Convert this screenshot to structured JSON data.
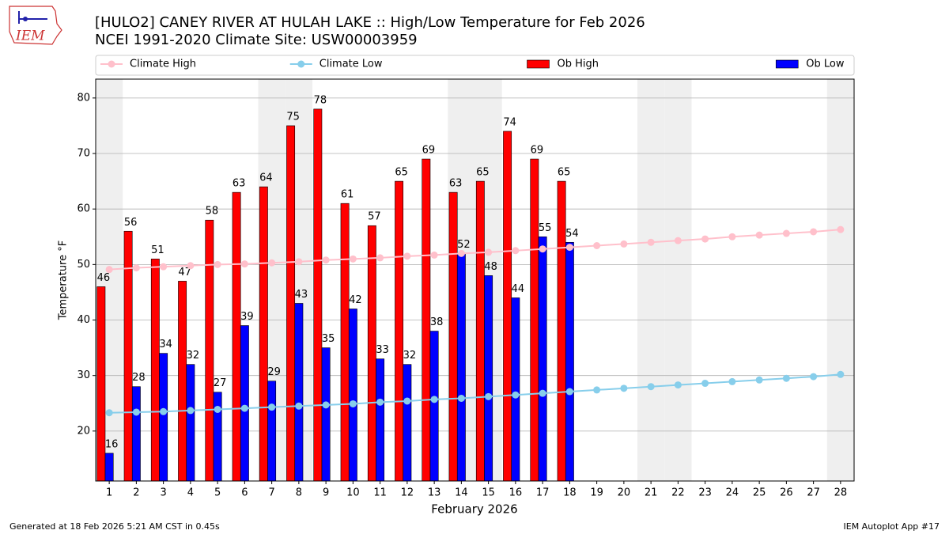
{
  "logo_text": "IEM",
  "footer_left": "Generated at 18 Feb 2026 5:21 AM CST in 0.45s",
  "footer_right": "IEM Autoplot App #17",
  "chart_data": {
    "type": "bar",
    "title": "[HULO2] CANEY RIVER  AT HULAH LAKE :: High/Low Temperature for Feb 2026",
    "subtitle": "NCEI 1991-2020 Climate Site: USW00003959",
    "x_label": "February 2026",
    "y_label": "Temperature °F",
    "x": [
      1,
      2,
      3,
      4,
      5,
      6,
      7,
      8,
      9,
      10,
      11,
      12,
      13,
      14,
      15,
      16,
      17,
      18,
      19,
      20,
      21,
      22,
      23,
      24,
      25,
      26,
      27,
      28
    ],
    "xlim": [
      0.5,
      28.5
    ],
    "xticks": [
      1,
      2,
      3,
      4,
      5,
      6,
      7,
      8,
      9,
      10,
      11,
      12,
      13,
      14,
      15,
      16,
      17,
      18,
      19,
      20,
      21,
      22,
      23,
      24,
      25,
      26,
      27,
      28
    ],
    "ylim": [
      11,
      83.4
    ],
    "yticks": [
      20,
      30,
      40,
      50,
      60,
      70,
      80
    ],
    "grid": true,
    "shaded_days": [
      1,
      7,
      8,
      14,
      15,
      21,
      22,
      28
    ],
    "shade_color": "#efefef",
    "legend": "top",
    "series": [
      {
        "name": "Climate High",
        "type": "line",
        "color": "#ffc0cb",
        "values": [
          49.1,
          49.4,
          49.6,
          49.8,
          50.0,
          50.1,
          50.3,
          50.5,
          50.8,
          51.0,
          51.2,
          51.5,
          51.7,
          52.0,
          52.2,
          52.5,
          52.8,
          53.1,
          53.4,
          53.7,
          54.0,
          54.3,
          54.6,
          55.0,
          55.3,
          55.6,
          55.9,
          56.3
        ]
      },
      {
        "name": "Climate Low",
        "type": "line",
        "color": "#87ceeb",
        "values": [
          23.3,
          23.4,
          23.5,
          23.7,
          23.9,
          24.1,
          24.3,
          24.5,
          24.7,
          24.9,
          25.2,
          25.4,
          25.7,
          25.9,
          26.2,
          26.5,
          26.8,
          27.1,
          27.4,
          27.7,
          28.0,
          28.3,
          28.6,
          28.9,
          29.2,
          29.5,
          29.8,
          30.2
        ]
      },
      {
        "name": "Ob High",
        "type": "bar",
        "color": "#ff0000",
        "values": [
          46,
          56,
          51,
          47,
          58,
          63,
          64,
          75,
          78,
          61,
          57,
          65,
          69,
          63,
          65,
          74,
          69,
          65,
          null,
          null,
          null,
          null,
          null,
          null,
          null,
          null,
          null,
          null
        ]
      },
      {
        "name": "Ob Low",
        "type": "bar",
        "color": "#0000ff",
        "values": [
          16,
          28,
          34,
          32,
          27,
          39,
          29,
          43,
          35,
          42,
          33,
          32,
          38,
          52,
          48,
          44,
          55,
          54,
          null,
          null,
          null,
          null,
          null,
          null,
          null,
          null,
          null,
          null
        ]
      }
    ]
  }
}
